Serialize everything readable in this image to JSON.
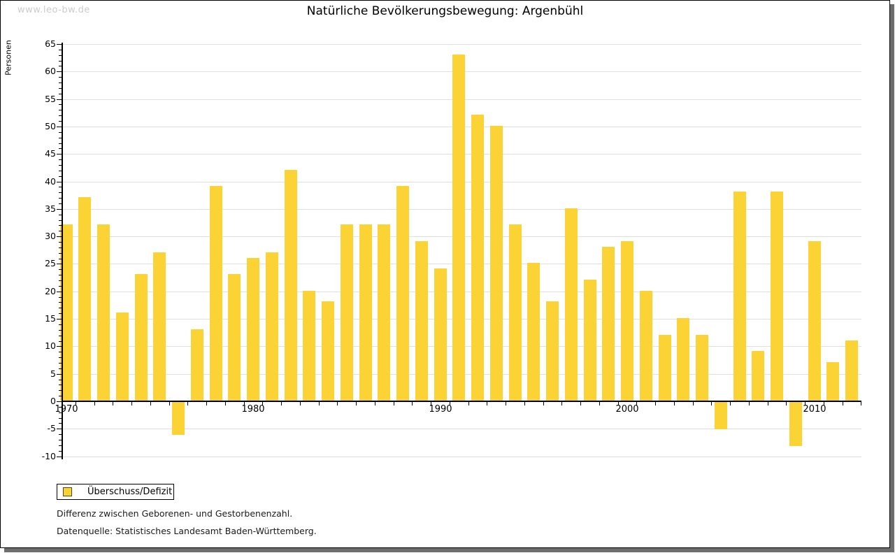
{
  "watermark": "www.leo-bw.de",
  "title": "Natürliche Bevölkerungsbewegung: Argenbühl",
  "legend": {
    "label": "Überschuss/Defizit"
  },
  "footer": {
    "line1": "Differenz zwischen Geborenen- und Gestorbenenzahl.",
    "line2": "Datenquelle: Statistisches Landesamt Baden-Württemberg."
  },
  "colors": {
    "bar": "#fbd335",
    "grid": "#e0e0e0",
    "axis": "#000000",
    "watermark": "#cccccc",
    "frame_shadow": "#6e6e6e"
  },
  "chart_data": {
    "type": "bar",
    "title": "Natürliche Bevölkerungsbewegung: Argenbühl",
    "ylabel": "Personen",
    "xlabel": "",
    "ylim": [
      -10,
      65
    ],
    "y_tick_step": 5,
    "grid": true,
    "legend_position": "bottom-left",
    "series_name": "Überschuss/Defizit",
    "x_tick_labels": [
      "1970",
      "1980",
      "1990",
      "2000",
      "2010"
    ],
    "x": [
      1970,
      1971,
      1972,
      1973,
      1974,
      1975,
      1976,
      1977,
      1978,
      1979,
      1980,
      1981,
      1982,
      1983,
      1984,
      1985,
      1986,
      1987,
      1988,
      1989,
      1990,
      1991,
      1992,
      1993,
      1994,
      1995,
      1996,
      1997,
      1998,
      1999,
      2000,
      2001,
      2002,
      2003,
      2004,
      2005,
      2006,
      2007,
      2008,
      2009,
      2010,
      2011,
      2012
    ],
    "values": [
      32,
      37,
      32,
      16,
      23,
      27,
      -6,
      13,
      39,
      23,
      26,
      27,
      42,
      20,
      18,
      32,
      32,
      32,
      39,
      29,
      24,
      63,
      52,
      50,
      32,
      25,
      18,
      35,
      22,
      28,
      29,
      20,
      12,
      15,
      12,
      -5,
      38,
      9,
      38,
      -8,
      29,
      7,
      11
    ]
  }
}
